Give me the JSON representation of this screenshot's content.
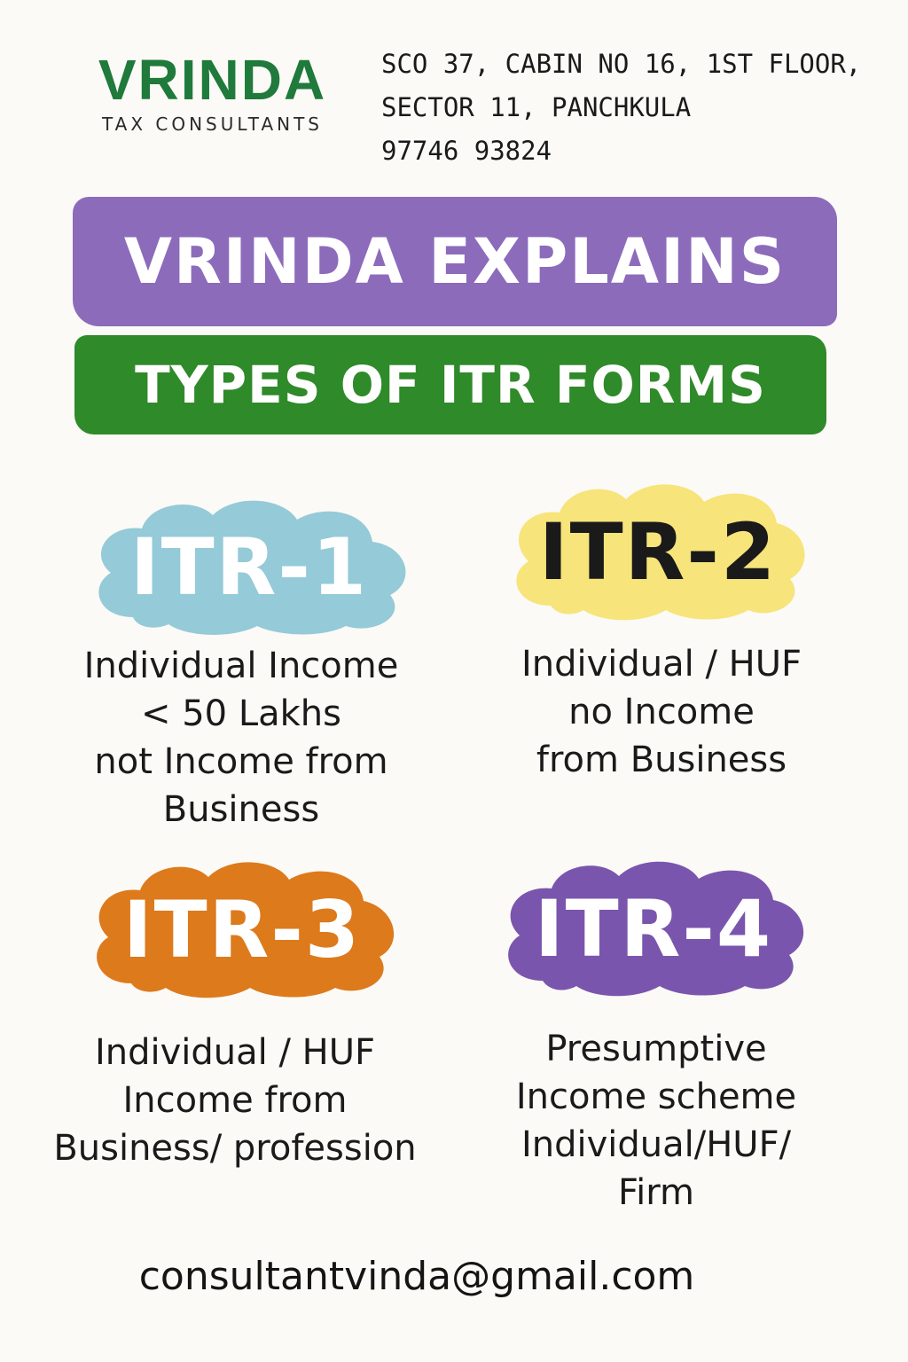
{
  "logo": {
    "name": "VRINDA",
    "subtitle": "TAX CONSULTANTS"
  },
  "contact": {
    "address_line1": "SCO 37, CABIN NO 16, 1ST FLOOR,",
    "address_line2": "SECTOR 11, PANCHKULA",
    "phone": "97746 93824",
    "email": "consultantvinda@gmail.com"
  },
  "banners": {
    "title": "VRINDA EXPLAINS",
    "subtitle": "TYPES OF ITR FORMS"
  },
  "forms": [
    {
      "label": "ITR-1",
      "lines": [
        "Individual Income",
        "< 50 Lakhs",
        "not Income from",
        "Business"
      ]
    },
    {
      "label": "ITR-2",
      "lines": [
        "Individual / HUF",
        "no Income",
        "from Business"
      ]
    },
    {
      "label": "ITR-3",
      "lines": [
        "Individual / HUF",
        "Income from",
        "Business/ profession"
      ]
    },
    {
      "label": "ITR-4",
      "lines": [
        "Presumptive",
        "Income scheme",
        "Individual/HUF/",
        "Firm"
      ]
    }
  ],
  "colors": {
    "brand_green": "#1f7a3b",
    "banner_purple": "#8c6bbb",
    "banner_green": "#2f8a29",
    "itr1_cloud": "#95cad8",
    "itr2_cloud": "#f7e47a",
    "itr3_cloud": "#dd7a1c",
    "itr4_cloud": "#7a55ad"
  }
}
